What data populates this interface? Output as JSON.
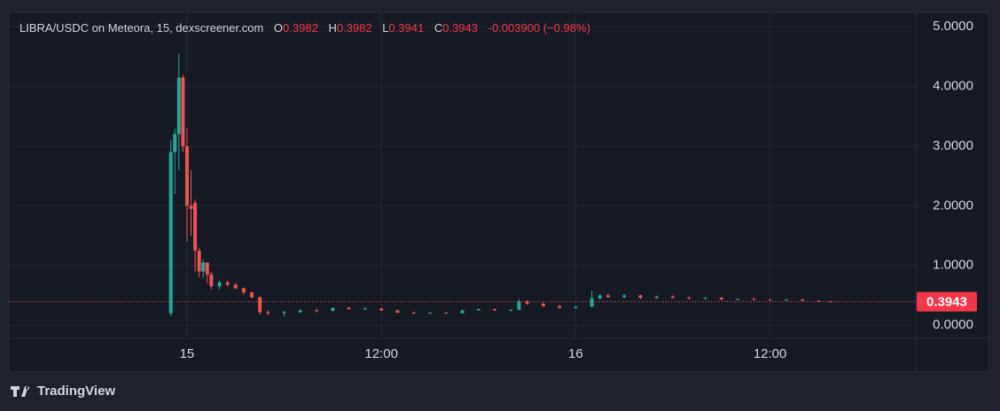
{
  "chart_data": {
    "type": "candlestick",
    "title": "LIBRA/USDC on Meteora, 15, dexscreener.com",
    "status": {
      "open_label": "O",
      "open": "0.3982",
      "high_label": "H",
      "high": "0.3982",
      "low_label": "L",
      "low": "0.3941",
      "close_label": "C",
      "close": "0.3943",
      "change": "-0.003900 (−0.98%)"
    },
    "last_price_label": "0.3943",
    "brand": "TradingView",
    "up_color": "#26a69a",
    "down_color": "#ef5350",
    "grid": true,
    "xlim": [
      -11,
      45
    ],
    "xticks": [
      {
        "value": 0,
        "label": "15"
      },
      {
        "value": 12,
        "label": "12:00"
      },
      {
        "value": 24,
        "label": "16"
      },
      {
        "value": 36,
        "label": "12:00"
      }
    ],
    "ylim": [
      -0.22,
      5.24
    ],
    "yticks": [
      {
        "value": 0,
        "label": "0.0000"
      },
      {
        "value": 1,
        "label": "1.0000"
      },
      {
        "value": 2,
        "label": "2.0000"
      },
      {
        "value": 3,
        "label": "3.0000"
      },
      {
        "value": 4,
        "label": "4.0000"
      },
      {
        "value": 5,
        "label": "5.0000"
      }
    ],
    "x": [
      -1,
      -0.75,
      -0.5,
      -0.25,
      0,
      0.25,
      0.5,
      0.75,
      1,
      1.25,
      1.5,
      2,
      2.5,
      3,
      3.5,
      4,
      4.5,
      5,
      6,
      7,
      8,
      9,
      10,
      11,
      12,
      13,
      14,
      15,
      16,
      17,
      18,
      19,
      20,
      20.5,
      21,
      22,
      23,
      24,
      25,
      25.5,
      26,
      27,
      28,
      29,
      30,
      31,
      32,
      33,
      34,
      35,
      36,
      37,
      38,
      39,
      39.75
    ],
    "open": [
      0.2,
      2.9,
      3.2,
      4.15,
      3.0,
      2.0,
      2.05,
      1.25,
      0.9,
      1.05,
      0.85,
      0.65,
      0.72,
      0.68,
      0.62,
      0.55,
      0.47,
      0.22,
      0.2,
      0.22,
      0.25,
      0.24,
      0.29,
      0.27,
      0.28,
      0.25,
      0.21,
      0.2,
      0.21,
      0.2,
      0.25,
      0.27,
      0.25,
      0.26,
      0.4,
      0.36,
      0.32,
      0.29,
      0.31,
      0.45,
      0.5,
      0.47,
      0.5,
      0.46,
      0.48,
      0.46,
      0.45,
      0.46,
      0.43,
      0.44,
      0.43,
      0.42,
      0.43,
      0.41,
      0.3982
    ],
    "high": [
      3.1,
      3.3,
      4.55,
      4.2,
      3.3,
      2.6,
      2.1,
      1.3,
      1.1,
      1.05,
      0.9,
      0.75,
      0.75,
      0.7,
      0.63,
      0.56,
      0.48,
      0.25,
      0.24,
      0.27,
      0.28,
      0.3,
      0.31,
      0.3,
      0.29,
      0.26,
      0.23,
      0.22,
      0.22,
      0.26,
      0.28,
      0.28,
      0.27,
      0.44,
      0.42,
      0.38,
      0.34,
      0.32,
      0.58,
      0.52,
      0.53,
      0.52,
      0.51,
      0.49,
      0.5,
      0.48,
      0.47,
      0.47,
      0.45,
      0.46,
      0.44,
      0.44,
      0.44,
      0.42,
      0.3982
    ],
    "low": [
      0.15,
      2.2,
      2.6,
      2.9,
      1.4,
      1.5,
      0.9,
      0.8,
      0.8,
      0.7,
      0.6,
      0.6,
      0.65,
      0.6,
      0.52,
      0.45,
      0.18,
      0.17,
      0.15,
      0.2,
      0.22,
      0.23,
      0.26,
      0.25,
      0.24,
      0.2,
      0.19,
      0.19,
      0.19,
      0.2,
      0.24,
      0.24,
      0.23,
      0.25,
      0.34,
      0.31,
      0.28,
      0.28,
      0.3,
      0.43,
      0.46,
      0.45,
      0.44,
      0.44,
      0.45,
      0.43,
      0.43,
      0.42,
      0.42,
      0.42,
      0.41,
      0.41,
      0.4,
      0.39,
      0.3941
    ],
    "close": [
      2.9,
      3.2,
      4.15,
      3.0,
      2.0,
      1.95,
      1.25,
      0.9,
      1.05,
      0.85,
      0.65,
      0.72,
      0.68,
      0.62,
      0.55,
      0.47,
      0.22,
      0.2,
      0.22,
      0.25,
      0.24,
      0.29,
      0.27,
      0.28,
      0.25,
      0.21,
      0.2,
      0.21,
      0.2,
      0.25,
      0.27,
      0.25,
      0.26,
      0.4,
      0.36,
      0.32,
      0.29,
      0.31,
      0.45,
      0.5,
      0.47,
      0.5,
      0.46,
      0.48,
      0.46,
      0.45,
      0.46,
      0.43,
      0.44,
      0.43,
      0.42,
      0.43,
      0.41,
      0.3982,
      0.3943
    ]
  }
}
